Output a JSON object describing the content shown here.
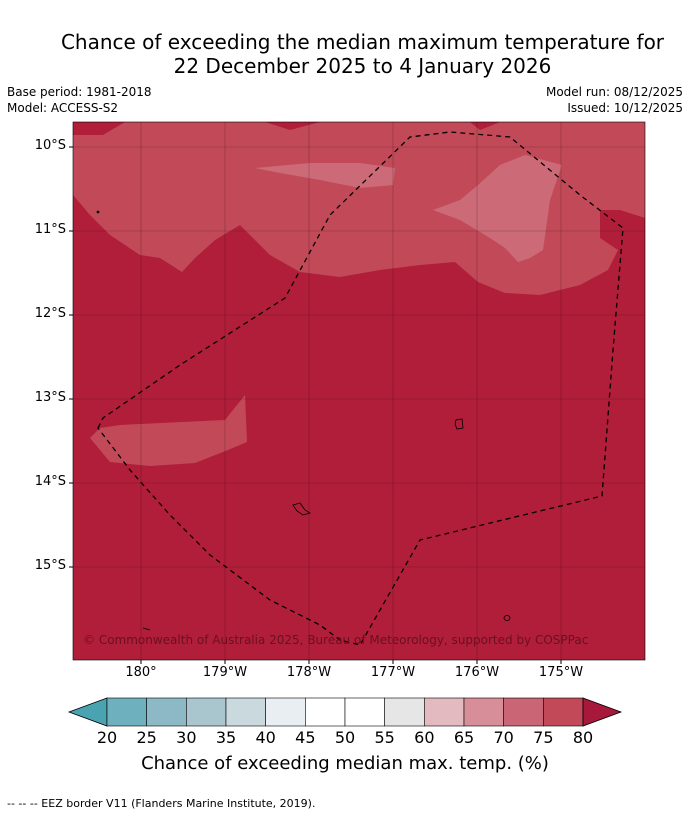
{
  "title": {
    "line1": "Chance of exceeding the median maximum temperature for",
    "line2": "22 December 2025 to 4 January 2026"
  },
  "meta": {
    "base_period": "Base period: 1981-2018",
    "model": "Model: ACCESS-S2",
    "model_run": "Model run: 08/12/2025",
    "issued": "Issued: 10/12/2025"
  },
  "map": {
    "lat_labels": [
      "10°S",
      "11°S",
      "12°S",
      "13°S",
      "14°S",
      "15°S"
    ],
    "lon_labels": [
      "180°",
      "179°W",
      "178°W",
      "177°W",
      "176°W",
      "175°W"
    ],
    "copyright": "© Commonwealth of Australia 2025, Bureau of Meteorology, supported by COSPPac",
    "colors": {
      "above_80": "#b11e3a",
      "band_75_80": "#c24a58",
      "band_70_75": "#cc6a78"
    }
  },
  "colorbar": {
    "ticks": [
      "20",
      "25",
      "30",
      "35",
      "40",
      "45",
      "50",
      "55",
      "60",
      "65",
      "70",
      "75",
      "80"
    ],
    "colors": [
      "#4aa3b0",
      "#6fb0be",
      "#8db9c6",
      "#a9c6ce",
      "#c9d9de",
      "#e8eef1",
      "#ffffff",
      "#ffffff",
      "#e6e6e6",
      "#e3bac0",
      "#d88e98",
      "#c96575",
      "#c24a58",
      "#a7183a"
    ],
    "label": "Chance of exceeding median max. temp. (%)"
  },
  "footnote": "--  --  -- EEZ border V11 (Flanders Marine Institute, 2019)."
}
